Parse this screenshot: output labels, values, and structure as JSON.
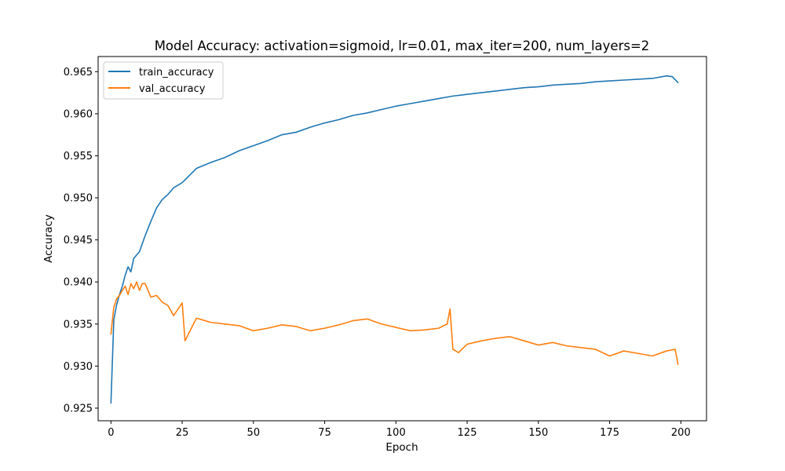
{
  "chart_data": {
    "type": "line",
    "title": "Model Accuracy: activation=sigmoid, lr=0.01, max_iter=200, num_layers=2",
    "xlabel": "Epoch",
    "ylabel": "Accuracy",
    "xlim": [
      -4.5,
      209
    ],
    "ylim": [
      0.9235,
      0.9668
    ],
    "xticks": [
      0,
      25,
      50,
      75,
      100,
      125,
      150,
      175,
      200
    ],
    "yticks": [
      0.925,
      0.93,
      0.935,
      0.94,
      0.945,
      0.95,
      0.955,
      0.96,
      0.965
    ],
    "ytick_labels": [
      "0.925",
      "0.930",
      "0.935",
      "0.940",
      "0.945",
      "0.950",
      "0.955",
      "0.960",
      "0.965"
    ],
    "grid": false,
    "legend_position": "top-left",
    "series": [
      {
        "name": "train_accuracy",
        "color": "#1f77b4",
        "x": [
          0,
          1,
          2,
          3,
          4,
          5,
          6,
          7,
          8,
          9,
          10,
          12,
          14,
          16,
          18,
          20,
          22,
          25,
          30,
          35,
          40,
          45,
          50,
          55,
          60,
          65,
          70,
          75,
          80,
          85,
          90,
          95,
          100,
          105,
          110,
          115,
          120,
          125,
          130,
          135,
          140,
          145,
          150,
          155,
          160,
          165,
          170,
          175,
          180,
          185,
          190,
          195,
          197,
          199
        ],
        "y": [
          0.9256,
          0.9355,
          0.9373,
          0.9385,
          0.9395,
          0.9408,
          0.9418,
          0.9412,
          0.9428,
          0.9432,
          0.9436,
          0.9455,
          0.9472,
          0.9488,
          0.9498,
          0.9504,
          0.9512,
          0.9518,
          0.9535,
          0.9542,
          0.9548,
          0.9556,
          0.9562,
          0.9568,
          0.9575,
          0.9578,
          0.9584,
          0.9589,
          0.9593,
          0.9598,
          0.9601,
          0.9605,
          0.9609,
          0.9612,
          0.9615,
          0.9618,
          0.9621,
          0.9623,
          0.9625,
          0.9627,
          0.9629,
          0.9631,
          0.9632,
          0.9634,
          0.9635,
          0.9636,
          0.9638,
          0.9639,
          0.964,
          0.9641,
          0.9642,
          0.9645,
          0.9644,
          0.9637
        ]
      },
      {
        "name": "val_accuracy",
        "color": "#ff7f0e",
        "x": [
          0,
          1,
          2,
          3,
          4,
          5,
          6,
          7,
          8,
          9,
          10,
          11,
          12,
          14,
          16,
          18,
          20,
          22,
          24,
          25,
          26,
          30,
          35,
          40,
          45,
          50,
          55,
          60,
          65,
          70,
          75,
          80,
          85,
          90,
          95,
          100,
          105,
          110,
          115,
          118,
          119,
          120,
          122,
          125,
          130,
          135,
          140,
          145,
          150,
          155,
          160,
          165,
          170,
          175,
          180,
          185,
          190,
          195,
          198,
          199
        ],
        "y": [
          0.9338,
          0.937,
          0.938,
          0.9384,
          0.939,
          0.9395,
          0.9385,
          0.9398,
          0.9392,
          0.94,
          0.939,
          0.9398,
          0.9398,
          0.9382,
          0.9384,
          0.9376,
          0.9372,
          0.936,
          0.937,
          0.9375,
          0.933,
          0.9357,
          0.9352,
          0.935,
          0.9348,
          0.9342,
          0.9345,
          0.9349,
          0.9347,
          0.9342,
          0.9345,
          0.9349,
          0.9354,
          0.9356,
          0.935,
          0.9346,
          0.9342,
          0.9343,
          0.9345,
          0.935,
          0.9368,
          0.932,
          0.9316,
          0.9326,
          0.933,
          0.9333,
          0.9335,
          0.933,
          0.9325,
          0.9328,
          0.9324,
          0.9322,
          0.932,
          0.9312,
          0.9318,
          0.9315,
          0.9312,
          0.9318,
          0.932,
          0.9302
        ]
      }
    ]
  }
}
